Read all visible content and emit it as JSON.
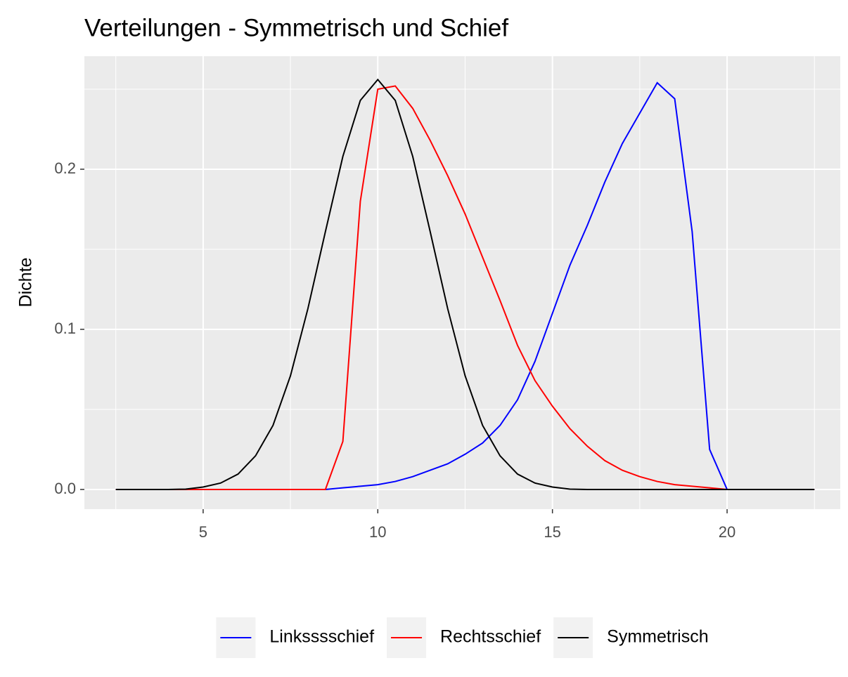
{
  "chart_data": {
    "type": "line",
    "title": "Verteilungen - Symmetrisch und Schief",
    "y_label": "Dichte",
    "x": [
      2.5,
      3,
      3.5,
      4,
      4.5,
      5,
      5.5,
      6,
      6.5,
      7,
      7.5,
      8,
      8.5,
      9,
      9.5,
      10,
      10.5,
      11,
      11.5,
      12,
      12.5,
      13,
      13.5,
      14,
      14.5,
      15,
      15.5,
      16,
      16.5,
      17,
      17.5,
      18,
      18.5,
      19,
      19.5,
      20,
      20.5,
      21,
      21.5,
      22,
      22.5
    ],
    "series": [
      {
        "name": "Linksssschief",
        "color": "#0000ff",
        "values": [
          0,
          0,
          0,
          0,
          0,
          0,
          0,
          0,
          0,
          0,
          0,
          0,
          0,
          0.001,
          0.002,
          0.003,
          0.005,
          0.008,
          0.012,
          0.016,
          0.022,
          0.029,
          0.04,
          0.056,
          0.08,
          0.11,
          0.14,
          0.165,
          0.192,
          0.216,
          0.235,
          0.254,
          0.244,
          0.161,
          0.025,
          0,
          0,
          0,
          0,
          0,
          0
        ]
      },
      {
        "name": "Rechtsschief",
        "color": "#ff0000",
        "values": [
          0,
          0,
          0,
          0,
          0,
          0,
          0,
          0,
          0,
          0,
          0,
          0,
          0,
          0.03,
          0.18,
          0.25,
          0.252,
          0.238,
          0.218,
          0.196,
          0.172,
          0.145,
          0.118,
          0.09,
          0.068,
          0.052,
          0.038,
          0.027,
          0.018,
          0.012,
          0.008,
          0.005,
          0.003,
          0.002,
          0.001,
          0,
          0,
          0,
          0,
          0,
          0
        ]
      },
      {
        "name": "Symmetrisch",
        "color": "#000000",
        "values": [
          0,
          0,
          0,
          0,
          0.0002,
          0.0015,
          0.004,
          0.0096,
          0.021,
          0.04,
          0.071,
          0.113,
          0.161,
          0.208,
          0.243,
          0.256,
          0.243,
          0.208,
          0.161,
          0.113,
          0.071,
          0.04,
          0.021,
          0.0096,
          0.004,
          0.0015,
          0.0002,
          0,
          0,
          0,
          0,
          0,
          0,
          0,
          0,
          0,
          0,
          0,
          0,
          0,
          0
        ]
      }
    ],
    "xlim": [
      1.6,
      23.24
    ],
    "ylim": [
      -0.0123,
      0.2706
    ],
    "xticks": [
      5,
      10,
      15,
      20
    ],
    "yticks": [
      {
        "value": 0,
        "label": "0.0"
      },
      0.1,
      0.2
    ],
    "x_minor_grid": [
      2.5,
      7.5,
      12.5,
      17.5,
      22.5
    ],
    "y_minor_grid": [
      0.05,
      0.15,
      0.25
    ],
    "grid": true,
    "legend": "bottom"
  }
}
